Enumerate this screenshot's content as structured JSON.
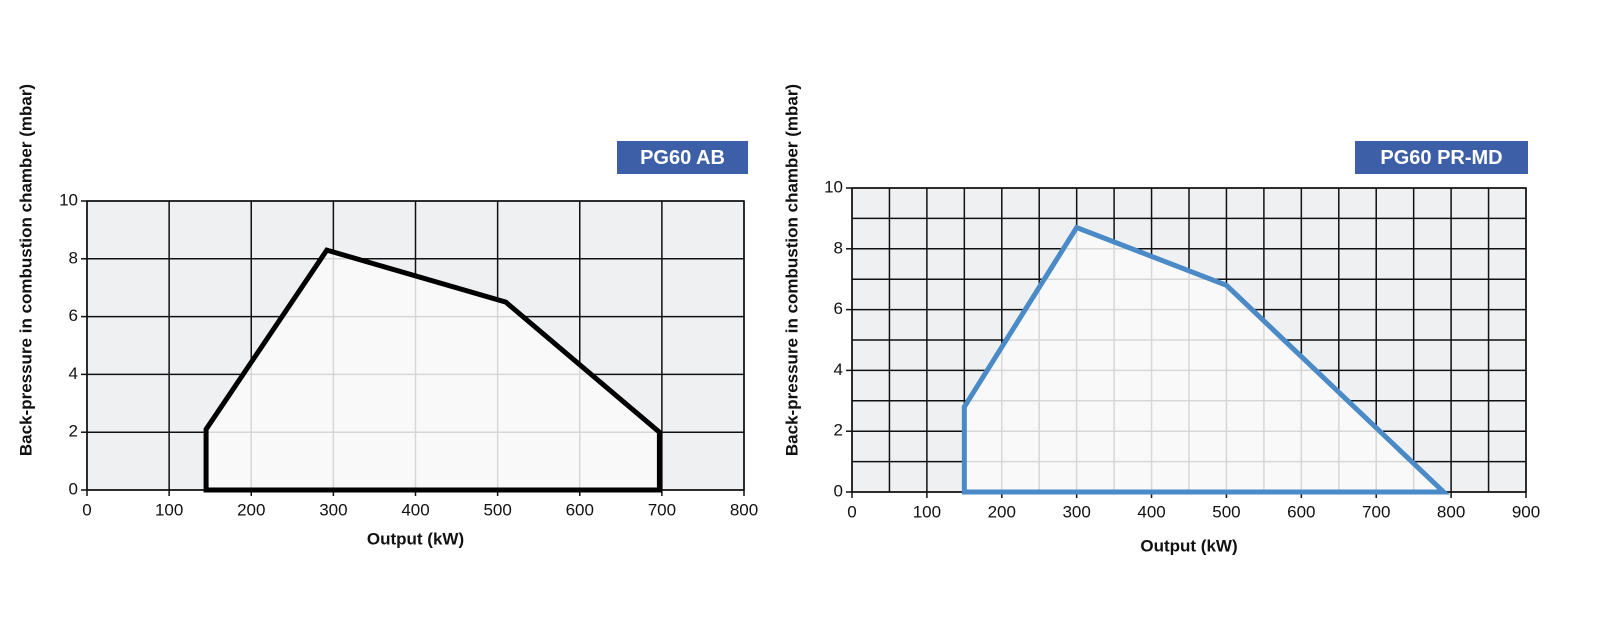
{
  "chart_data": [
    {
      "type": "area",
      "title": "PG60 AB",
      "xlabel": "Output (kW)",
      "ylabel": "Back-pressure in combustion chamber (mbar)",
      "x": [
        145,
        145,
        292,
        510,
        697,
        697
      ],
      "values": [
        0,
        2.1,
        8.3,
        6.5,
        2,
        0
      ],
      "color": "#000000",
      "xlim": [
        0,
        800
      ],
      "xticks": [
        0,
        100,
        200,
        300,
        400,
        500,
        600,
        700,
        800
      ],
      "ylim": [
        0,
        10
      ],
      "yticks": [
        0,
        2,
        4,
        6,
        8,
        10
      ],
      "grid": true,
      "grid_subdivisions": 1
    },
    {
      "type": "area",
      "title": "PG60 PR-MD",
      "xlabel": "Output (kW)",
      "ylabel": "Back-pressure in combustion chamber (mbar)",
      "x": [
        150,
        150,
        300,
        500,
        790
      ],
      "values": [
        0,
        2.8,
        8.7,
        6.8,
        0
      ],
      "color": "#4a8ac6",
      "xlim": [
        0,
        900
      ],
      "xticks": [
        0,
        100,
        200,
        300,
        400,
        500,
        600,
        700,
        800,
        900
      ],
      "ylim": [
        0,
        10
      ],
      "yticks": [
        0,
        2,
        4,
        6,
        8,
        10
      ],
      "grid": true,
      "grid_subdivisions": 2
    }
  ]
}
